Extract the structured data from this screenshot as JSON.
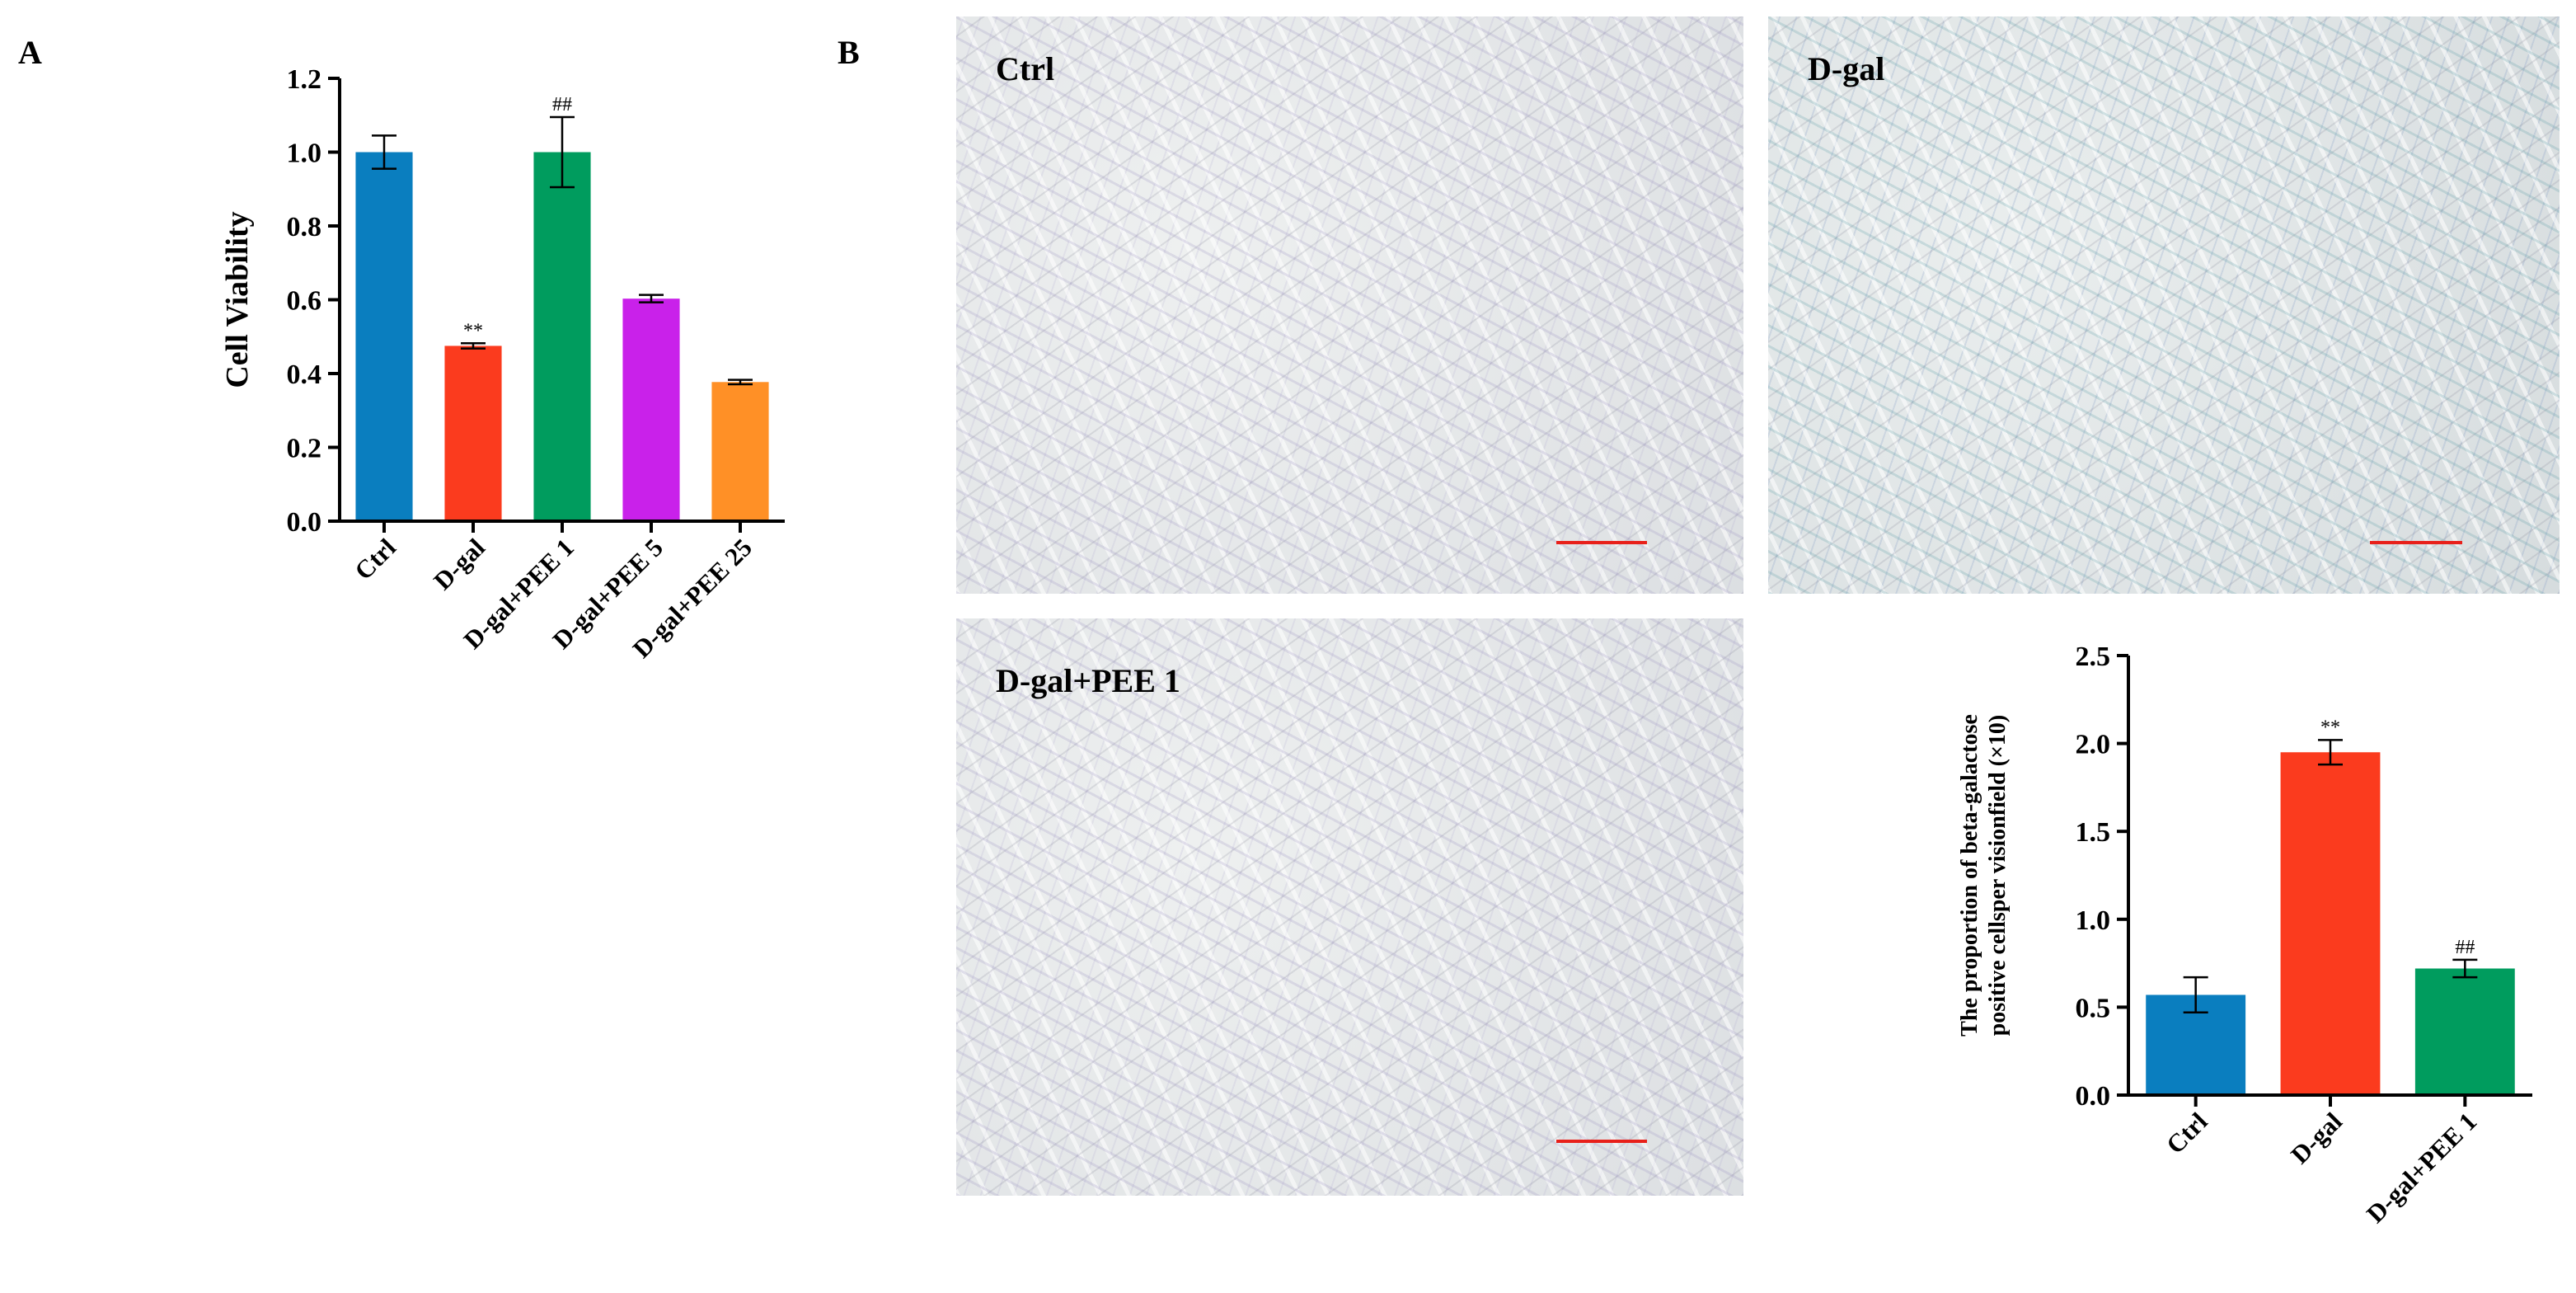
{
  "panels": {
    "a": "A",
    "b": "B"
  },
  "micrographs": [
    {
      "label": "Ctrl"
    },
    {
      "label": "D-gal"
    },
    {
      "label": "D-gal+PEE 1"
    }
  ],
  "colors": {
    "ctrl": "#0a7ebf",
    "dgal": "#fb3b1e",
    "pee1": "#009c5e",
    "pee5": "#c921ea",
    "pee25": "#ff9026",
    "scalebar": "#e8201a"
  },
  "chart_data": [
    {
      "type": "bar",
      "title": "",
      "xlabel": "",
      "ylabel": "Cell Viability",
      "ylim": [
        0,
        1.2
      ],
      "yticks": [
        "0.0",
        "0.2",
        "0.4",
        "0.6",
        "0.8",
        "1.0",
        "1.2"
      ],
      "categories": [
        "Ctrl",
        "D-gal",
        "D-gal+PEE 1",
        "D-gal+PEE 5",
        "D-gal+PEE 25"
      ],
      "values": [
        1.0,
        0.475,
        1.0,
        0.603,
        0.377
      ],
      "errors": [
        0.045,
        0.007,
        0.095,
        0.01,
        0.006
      ],
      "annotations": [
        "",
        "**",
        "##",
        "",
        ""
      ],
      "colors": [
        "#0a7ebf",
        "#fb3b1e",
        "#009c5e",
        "#c921ea",
        "#ff9026"
      ]
    },
    {
      "type": "bar",
      "title": "",
      "xlabel": "",
      "ylabel": [
        "The proportion of beta-galactose",
        "positive cellsper visionfield (×10)"
      ],
      "ylim": [
        0,
        2.5
      ],
      "yticks": [
        "0.0",
        "0.5",
        "1.0",
        "1.5",
        "2.0",
        "2.5"
      ],
      "categories": [
        "Ctrl",
        "D-gal",
        "D-gal+PEE 1"
      ],
      "values": [
        0.57,
        1.95,
        0.72
      ],
      "errors": [
        0.1,
        0.07,
        0.05
      ],
      "annotations": [
        "",
        "**",
        "##"
      ],
      "colors": [
        "#0a7ebf",
        "#fb3b1e",
        "#009c5e"
      ]
    }
  ]
}
